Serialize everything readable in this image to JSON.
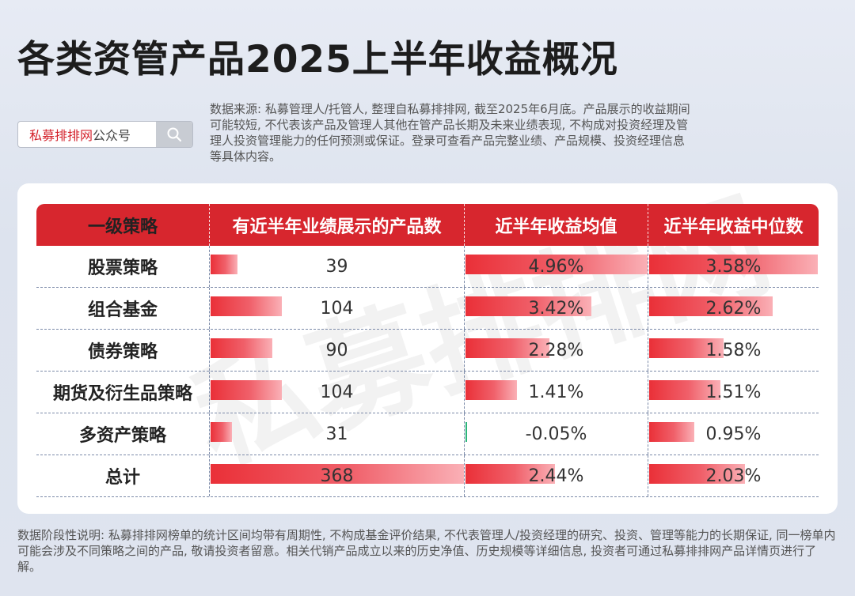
{
  "title": "各类资管产品2025上半年收益概况",
  "search": {
    "brand": "私募排排网",
    "suffix": "公众号",
    "icon": "search-icon"
  },
  "source_note": "数据来源: 私募管理人/托管人, 整理自私募排排网, 截至2025年6月底。产品展示的收益期间可能较短, 不代表该产品及管理人其他在管产品长期及未来业绩表现, 不构成对投资经理及管理人投资管理能力的任何预测或保证。登录可查看产品完整业绩、产品规模、投资经理信息等具体内容。",
  "watermark": "私募排排网",
  "footer_note": "数据阶段性说明: 私募排排网榜单的统计区间均带有周期性, 不构成基金评价结果, 不代表管理人/投资经理的研究、投资、管理等能力的长期保证, 同一榜单内可能会涉及不同策略之间的产品, 敬请投资者留意。相关代销产品成立以来的历史净值、历史规模等详细信息, 投资者可通过私募排排网产品详情页进行了解。",
  "colors": {
    "header_red": "#d7262e",
    "bar_red": "#ea3038",
    "bar_negative": "#2cb57a"
  },
  "chart_data": {
    "type": "table",
    "columns": [
      "一级策略",
      "有近半年业绩展示的产品数",
      "近半年收益均值",
      "近半年收益中位数"
    ],
    "rows": [
      {
        "strategy": "股票策略",
        "count": 39,
        "mean": 4.96,
        "median": 3.58,
        "mean_label": "4.96%",
        "median_label": "3.58%"
      },
      {
        "strategy": "组合基金",
        "count": 104,
        "mean": 3.42,
        "median": 2.62,
        "mean_label": "3.42%",
        "median_label": "2.62%"
      },
      {
        "strategy": "债券策略",
        "count": 90,
        "mean": 2.28,
        "median": 1.58,
        "mean_label": "2.28%",
        "median_label": "1.58%"
      },
      {
        "strategy": "期货及衍生品策略",
        "count": 104,
        "mean": 1.41,
        "median": 1.51,
        "mean_label": "1.41%",
        "median_label": "1.51%"
      },
      {
        "strategy": "多资产策略",
        "count": 31,
        "mean": -0.05,
        "median": 0.95,
        "mean_label": "-0.05%",
        "median_label": "0.95%"
      },
      {
        "strategy": "总计",
        "count": 368,
        "mean": 2.44,
        "median": 2.03,
        "mean_label": "2.44%",
        "median_label": "2.03%"
      }
    ]
  }
}
